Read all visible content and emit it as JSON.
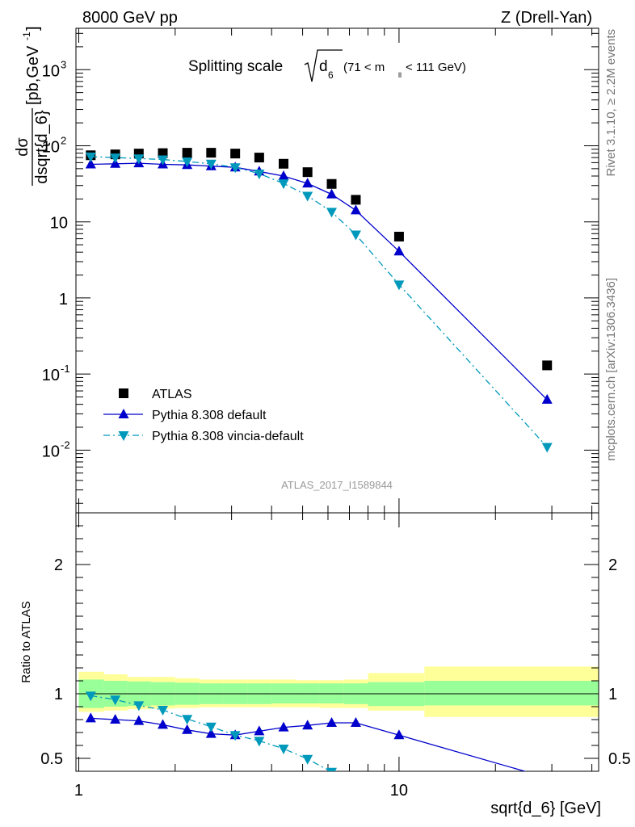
{
  "header": {
    "left": "8000 GeV pp",
    "right": "Z (Drell-Yan)"
  },
  "title": {
    "prefix": "Splitting scale",
    "sqrt_arg": "d",
    "sqrt_sub": "6",
    "range_open": "(71 < m",
    "range_sub": "ll",
    "range_close": "< 111 GeV)"
  },
  "side": {
    "rivet": "Rivet 3.1.10, ≥ 2.2M events",
    "mcplots": "mcplots.cern.ch [arXiv:1306.3436]"
  },
  "watermark": "ATLAS_2017_I1589844",
  "ylabel": {
    "num": "dσ",
    "den": "dsqrt{d_6}",
    "units_open": "[pb,GeV",
    "units_sup": "-1",
    "units_close": "]"
  },
  "ratio_ylabel": "Ratio to ATLAS",
  "xlabel": "sqrt{d_6} [GeV]",
  "upper_ticks": [
    {
      "value": 0.01,
      "base": "10",
      "exp": "-2"
    },
    {
      "value": 0.1,
      "base": "10",
      "exp": "-1"
    },
    {
      "value": 1,
      "base": "1",
      "exp": ""
    },
    {
      "value": 10,
      "base": "10",
      "exp": ""
    },
    {
      "value": 100,
      "base": "10",
      "exp": "2"
    },
    {
      "value": 1000,
      "base": "10",
      "exp": "3"
    }
  ],
  "ratio_ticks": [
    {
      "value": 0.5,
      "label": "0.5"
    },
    {
      "value": 1,
      "label": "1"
    },
    {
      "value": 2,
      "label": "2"
    }
  ],
  "x_ticks": [
    {
      "value": 1,
      "label": "1"
    },
    {
      "value": 10,
      "label": "10"
    }
  ],
  "chart_data": {
    "type": "scatter",
    "log_x": true,
    "log_y": true,
    "xlim": [
      0.98,
      42
    ],
    "ylim": [
      0.0015,
      3500
    ],
    "ratio_ylim": [
      0.4,
      2.4
    ],
    "legend_position": "lower-left",
    "series": [
      {
        "name": "ATLAS",
        "color": "#000000",
        "marker": "square",
        "x": [
          1.09,
          1.3,
          1.54,
          1.83,
          2.18,
          2.59,
          3.08,
          3.66,
          4.36,
          5.18,
          6.16,
          7.33,
          10.0,
          29.0
        ],
        "values": [
          75,
          77,
          79,
          80,
          81,
          81,
          79,
          70,
          58,
          45,
          31.5,
          19.5,
          6.4,
          0.13
        ]
      },
      {
        "name": "Pythia 8.308 default",
        "color": "#0000cc",
        "marker": "triangle-up",
        "line": "solid",
        "x": [
          1.09,
          1.3,
          1.54,
          1.83,
          2.18,
          2.59,
          3.08,
          3.66,
          4.36,
          5.18,
          6.16,
          7.33,
          10.0,
          29.0
        ],
        "values": [
          57,
          58,
          59,
          57,
          56,
          54,
          52,
          46,
          40,
          32,
          23,
          14.2,
          4.1,
          0.046
        ]
      },
      {
        "name": "Pythia 8.308 vincia-default",
        "color": "#0099bb",
        "marker": "triangle-down",
        "line": "dashdot",
        "x": [
          1.09,
          1.3,
          1.54,
          1.83,
          2.18,
          2.59,
          3.08,
          3.66,
          4.36,
          5.18,
          6.16,
          7.33,
          10.0,
          29.0
        ],
        "values": [
          72,
          70,
          68,
          66,
          62,
          58,
          52,
          43,
          32,
          22,
          13.5,
          6.8,
          1.5,
          0.011
        ]
      }
    ],
    "ratio_series": [
      {
        "name": "Pythia 8.308 default",
        "x": [
          1.09,
          1.3,
          1.54,
          1.83,
          2.18,
          2.59,
          3.08,
          3.66,
          4.36,
          5.18,
          6.16,
          7.33,
          10.0,
          29.0
        ],
        "values": [
          0.81,
          0.8,
          0.79,
          0.76,
          0.72,
          0.69,
          0.68,
          0.71,
          0.74,
          0.755,
          0.775,
          0.775,
          0.68,
          0.35
        ]
      },
      {
        "name": "Pythia 8.308 vincia-default",
        "x": [
          1.09,
          1.3,
          1.54,
          1.83,
          2.18,
          2.59,
          3.08,
          3.66,
          4.36,
          5.18,
          6.16,
          7.33
        ],
        "values": [
          0.985,
          0.955,
          0.91,
          0.875,
          0.805,
          0.745,
          0.68,
          0.635,
          0.575,
          0.495,
          0.395,
          0.32
        ]
      }
    ],
    "ratio_bands": [
      {
        "x0": 1.0,
        "x1": 1.2,
        "green": [
          0.89,
          1.11
        ],
        "yellow": [
          0.86,
          1.17
        ]
      },
      {
        "x0": 1.2,
        "x1": 1.42,
        "green": [
          0.9,
          1.1
        ],
        "yellow": [
          0.87,
          1.15
        ]
      },
      {
        "x0": 1.42,
        "x1": 1.68,
        "green": [
          0.905,
          1.095
        ],
        "yellow": [
          0.88,
          1.13
        ]
      },
      {
        "x0": 1.68,
        "x1": 2.0,
        "green": [
          0.91,
          1.09
        ],
        "yellow": [
          0.885,
          1.13
        ]
      },
      {
        "x0": 2.0,
        "x1": 2.38,
        "green": [
          0.915,
          1.085
        ],
        "yellow": [
          0.89,
          1.12
        ]
      },
      {
        "x0": 2.38,
        "x1": 2.83,
        "green": [
          0.92,
          1.08
        ],
        "yellow": [
          0.895,
          1.11
        ]
      },
      {
        "x0": 2.83,
        "x1": 3.36,
        "green": [
          0.92,
          1.08
        ],
        "yellow": [
          0.895,
          1.11
        ]
      },
      {
        "x0": 3.36,
        "x1": 4.0,
        "green": [
          0.92,
          1.08
        ],
        "yellow": [
          0.895,
          1.11
        ]
      },
      {
        "x0": 4.0,
        "x1": 4.76,
        "green": [
          0.925,
          1.08
        ],
        "yellow": [
          0.895,
          1.11
        ]
      },
      {
        "x0": 4.76,
        "x1": 5.66,
        "green": [
          0.925,
          1.08
        ],
        "yellow": [
          0.895,
          1.105
        ]
      },
      {
        "x0": 5.66,
        "x1": 6.73,
        "green": [
          0.925,
          1.08
        ],
        "yellow": [
          0.89,
          1.105
        ]
      },
      {
        "x0": 6.73,
        "x1": 8.0,
        "green": [
          0.92,
          1.08
        ],
        "yellow": [
          0.89,
          1.11
        ]
      },
      {
        "x0": 8.0,
        "x1": 12.0,
        "green": [
          0.905,
          1.09
        ],
        "yellow": [
          0.87,
          1.16
        ]
      },
      {
        "x0": 12.0,
        "x1": 42.0,
        "green": [
          0.91,
          1.1
        ],
        "yellow": [
          0.82,
          1.21
        ]
      }
    ]
  },
  "colors": {
    "band_green": "#99ff99",
    "band_yellow": "#ffff99"
  }
}
